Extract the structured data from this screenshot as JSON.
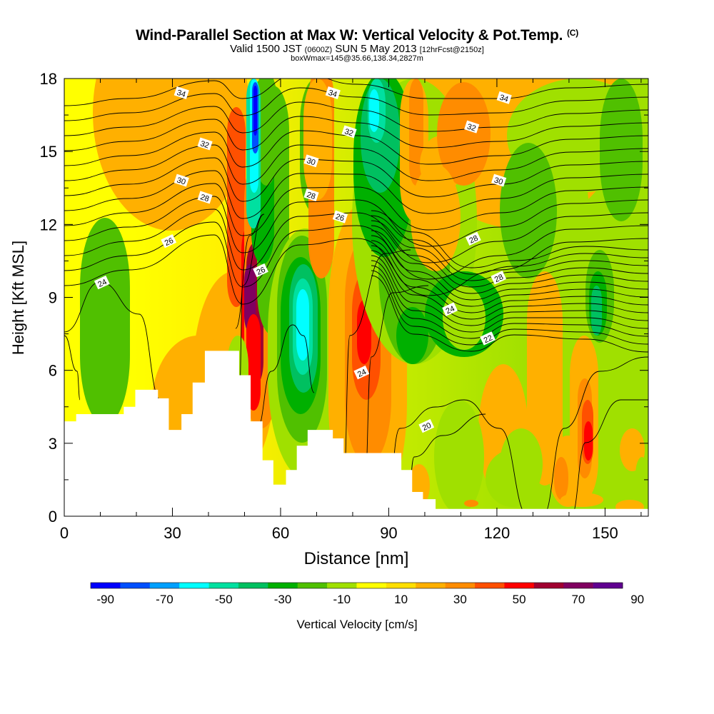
{
  "chart_data": {
    "type": "heatmap",
    "title": "Wind-Parallel Section at Max W: Vertical Velocity & Pot.Temp.",
    "title_mark": "(C)",
    "subtitle_valid": "Valid 1500 JST",
    "subtitle_z": "(0600Z)",
    "subtitle_date": "SUN 5 May 2013",
    "subtitle_fcst": "[12hrFcst@2150z]",
    "subtitle_box": "boxWmax=145@35.66,138.34,2827m",
    "xlabel": "Distance [nm]",
    "ylabel": "Height [Kft MSL]",
    "xlim": [
      0,
      162
    ],
    "ylim": [
      0,
      18
    ],
    "x_ticks": [
      "0",
      "30",
      "60",
      "90",
      "120",
      "150"
    ],
    "y_ticks": [
      "0",
      "3",
      "6",
      "9",
      "12",
      "15",
      "18"
    ],
    "colorbar": {
      "label": "Vertical Velocity [cm/s]",
      "tick_labels": [
        "-90",
        "-70",
        "-50",
        "-30",
        "-10",
        "10",
        "30",
        "50",
        "70",
        "90"
      ],
      "colors": [
        "#0000ff",
        "#0050ff",
        "#00a0ff",
        "#00ffff",
        "#00e0a0",
        "#00c060",
        "#00b000",
        "#50c000",
        "#a0e000",
        "#ffff00",
        "#ffdf00",
        "#ffb000",
        "#ff8c00",
        "#ff5000",
        "#ff0000",
        "#a00030",
        "#800060",
        "#600090"
      ]
    },
    "contour_labels": [
      {
        "text": "34",
        "x": 32.5,
        "y": 17.4
      },
      {
        "text": "34",
        "x": 74.5,
        "y": 17.4
      },
      {
        "text": "34",
        "x": 122,
        "y": 17.2
      },
      {
        "text": "32",
        "x": 39,
        "y": 15.3
      },
      {
        "text": "32",
        "x": 79,
        "y": 15.8
      },
      {
        "text": "32",
        "x": 113,
        "y": 16.0
      },
      {
        "text": "30",
        "x": 32.5,
        "y": 13.8
      },
      {
        "text": "30",
        "x": 68.5,
        "y": 14.6
      },
      {
        "text": "30",
        "x": 120.5,
        "y": 13.8
      },
      {
        "text": "28",
        "x": 39,
        "y": 13.1
      },
      {
        "text": "28",
        "x": 68.5,
        "y": 13.2
      },
      {
        "text": "28",
        "x": 113.5,
        "y": 11.4
      },
      {
        "text": "28",
        "x": 120.5,
        "y": 9.8
      },
      {
        "text": "26",
        "x": 29,
        "y": 11.3
      },
      {
        "text": "26",
        "x": 76.5,
        "y": 12.3
      },
      {
        "text": "26",
        "x": 54.5,
        "y": 10.1
      },
      {
        "text": "24",
        "x": 10.5,
        "y": 9.6
      },
      {
        "text": "24",
        "x": 107,
        "y": 8.5
      },
      {
        "text": "24",
        "x": 82.5,
        "y": 5.9
      },
      {
        "text": "22",
        "x": 117.5,
        "y": 7.3
      },
      {
        "text": "20",
        "x": 100.5,
        "y": 3.7
      }
    ],
    "terrain_kft": [
      [
        0,
        3.9
      ],
      [
        3.3,
        3.9
      ],
      [
        3.3,
        4.2
      ],
      [
        16.5,
        4.2
      ],
      [
        16.5,
        4.5
      ],
      [
        19.7,
        4.5
      ],
      [
        19.7,
        5.2
      ],
      [
        26,
        5.2
      ],
      [
        26,
        4.85
      ],
      [
        29,
        4.85
      ],
      [
        29,
        3.55
      ],
      [
        32.5,
        3.55
      ],
      [
        32.5,
        4.2
      ],
      [
        35.6,
        4.2
      ],
      [
        35.6,
        5.5
      ],
      [
        39,
        5.5
      ],
      [
        39,
        6.8
      ],
      [
        48.5,
        6.8
      ],
      [
        48.5,
        5.8
      ],
      [
        51.7,
        5.8
      ],
      [
        51.7,
        3.9
      ],
      [
        55,
        3.9
      ],
      [
        55,
        2.3
      ],
      [
        58,
        2.3
      ],
      [
        58,
        1.3
      ],
      [
        61.5,
        1.3
      ],
      [
        61.5,
        1.9
      ],
      [
        64.5,
        1.9
      ],
      [
        64.5,
        2.9
      ],
      [
        67.5,
        2.9
      ],
      [
        67.5,
        3.55
      ],
      [
        74.5,
        3.55
      ],
      [
        74.5,
        3.2
      ],
      [
        77.5,
        3.2
      ],
      [
        77.5,
        2.6
      ],
      [
        93.5,
        2.6
      ],
      [
        93.5,
        1.9
      ],
      [
        96.5,
        1.9
      ],
      [
        96.5,
        1.0
      ],
      [
        99.5,
        1.0
      ],
      [
        99.5,
        0.7
      ],
      [
        103,
        0.7
      ],
      [
        103,
        0.3
      ],
      [
        162,
        0.3
      ]
    ],
    "isentrope_levels": [
      20,
      22,
      24,
      26,
      28,
      30,
      32,
      34
    ]
  }
}
